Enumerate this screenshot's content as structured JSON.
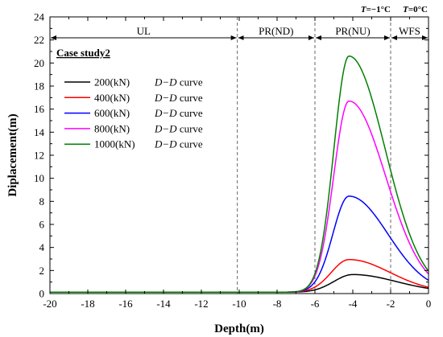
{
  "chart_data": {
    "type": "line",
    "xlabel": "Depth(m)",
    "ylabel": "Diplacement(m)",
    "xlim": [
      -20,
      0
    ],
    "ylim": [
      0,
      24
    ],
    "xticks": [
      "-20",
      "-18",
      "-16",
      "-14",
      "-12",
      "-10",
      "-8",
      "-6",
      "-4",
      "-2",
      "0"
    ],
    "yticks": [
      "0",
      "2",
      "4",
      "6",
      "8",
      "10",
      "12",
      "14",
      "16",
      "18",
      "20",
      "22",
      "24"
    ],
    "grid": false,
    "case_label": "Case study2",
    "zones": [
      {
        "label": "UL",
        "x_start": -20,
        "x_end": -10.1
      },
      {
        "label": "PR(ND)",
        "x_start": -10.1,
        "x_end": -6
      },
      {
        "label": "PR(NU)",
        "x_start": -6,
        "x_end": -2
      },
      {
        "label": "WFS",
        "x_start": -2,
        "x_end": 0
      }
    ],
    "boundaries": [
      -10.1,
      -6,
      -2
    ],
    "temperature_labels": [
      {
        "italic": "T",
        "rest": "=−1°C"
      },
      {
        "italic": "T",
        "rest": "=0°C"
      }
    ],
    "legend_position": "upper-left",
    "series": [
      {
        "name": "200(kN)",
        "suffix_italic": "D−D",
        "suffix": " curve",
        "color": "#000000",
        "baseline": 0.12,
        "peak": 1.65,
        "peak_x": -4.0,
        "end_value": 0.45
      },
      {
        "name": "400(kN)",
        "suffix_italic": "D−D",
        "suffix": " curve",
        "color": "#ff0000",
        "baseline": 0.12,
        "peak": 2.95,
        "peak_x": -4.2,
        "end_value": 0.55
      },
      {
        "name": "600(kN)",
        "suffix_italic": "D−D",
        "suffix": " curve",
        "color": "#0000ff",
        "baseline": 0.12,
        "peak": 8.45,
        "peak_x": -4.2,
        "end_value": 1.15
      },
      {
        "name": "800(kN)",
        "suffix_italic": "D−D",
        "suffix": " curve",
        "color": "#ff00ff",
        "baseline": 0.12,
        "peak": 16.7,
        "peak_x": -4.2,
        "end_value": 1.7
      },
      {
        "name": "1000(kN)",
        "suffix_italic": "D−D",
        "suffix": " curve",
        "color": "#008000",
        "baseline": 0.12,
        "peak": 20.6,
        "peak_x": -4.2,
        "end_value": 1.95
      }
    ]
  }
}
